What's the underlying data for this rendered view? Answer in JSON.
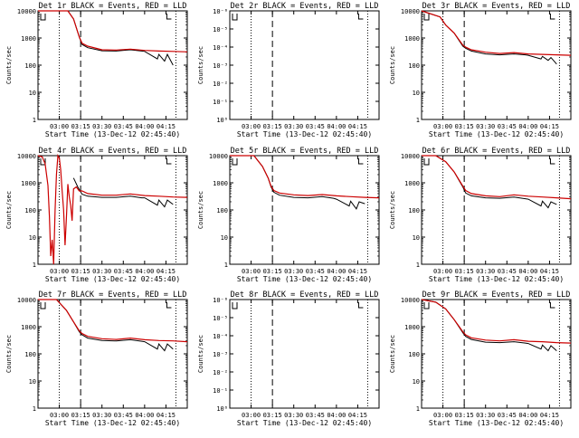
{
  "figure": {
    "xlabel": "Start Time (13-Dec-12 02:45:40)",
    "ylabel": "Counts/sec"
  },
  "chart_data": [
    {
      "type": "line",
      "title": "Det 1r BLACK = Events, RED = LLD",
      "xlabel": "Start Time (13-Dec-12 02:45:40)",
      "ylabel": "Counts/sec",
      "scale": "log",
      "ylim": [
        1,
        10000
      ],
      "yticks": [
        "1",
        "10",
        "100",
        "1000",
        "10000"
      ],
      "xticks": [
        "03:00",
        "03:15",
        "03:30",
        "03:45",
        "04:00",
        "04:15"
      ],
      "dotted_lines": [
        "03:00",
        "04:22"
      ],
      "dashed_lines": [
        "03:15"
      ],
      "series": [
        {
          "color": "#000000",
          "x": [
            "02:45",
            "03:06",
            "03:10",
            "03:14",
            "03:16",
            "03:20",
            "03:30",
            "03:40",
            "03:50",
            "03:58",
            "04:00",
            "04:09",
            "04:10",
            "04:14",
            "04:16",
            "04:20"
          ],
          "values": [
            10000,
            10000,
            5000,
            1100,
            580,
            440,
            340,
            330,
            370,
            330,
            320,
            170,
            250,
            140,
            250,
            100
          ]
        },
        {
          "color": "#cc0000",
          "x": [
            "02:45",
            "03:06",
            "03:10",
            "03:14",
            "03:16",
            "03:20",
            "03:30",
            "03:40",
            "03:50",
            "04:00",
            "04:10",
            "04:20",
            "04:30"
          ],
          "values": [
            10000,
            10000,
            5000,
            1100,
            640,
            500,
            370,
            360,
            390,
            350,
            330,
            320,
            310
          ]
        }
      ]
    },
    {
      "type": "line",
      "title": "Det 2r BLACK = Events, RED = LLD",
      "xlabel": "Start Time (13-Dec-12 02:45:40)",
      "ylabel": "Counts/sec",
      "scale": "log",
      "ylim": [
        1,
        1.000001
      ],
      "yticks": [
        "10⁰",
        "10⁻¹",
        "10⁻²",
        "10⁻³",
        "10⁻⁴",
        "10⁻⁵",
        "10⁻⁶"
      ],
      "xticks": [
        "03:00",
        "03:15",
        "03:30",
        "03:45",
        "04:00",
        "04:15"
      ],
      "dotted_lines": [
        "03:00",
        "04:22"
      ],
      "dashed_lines": [
        "03:15"
      ],
      "series": []
    },
    {
      "type": "line",
      "title": "Det 3r BLACK = Events, RED = LLD",
      "xlabel": "Start Time (13-Dec-12 02:45:40)",
      "ylabel": "Counts/sec",
      "scale": "log",
      "ylim": [
        1,
        10000
      ],
      "yticks": [
        "1",
        "10",
        "100",
        "1000",
        "10000"
      ],
      "xticks": [
        "03:00",
        "03:15",
        "03:30",
        "03:45",
        "04:00",
        "04:15"
      ],
      "dotted_lines": [
        "03:00",
        "04:22"
      ],
      "dashed_lines": [
        "03:15"
      ],
      "series": [
        {
          "color": "#000000",
          "x": [
            "02:45",
            "02:58",
            "03:02",
            "03:08",
            "03:14",
            "03:16",
            "03:20",
            "03:30",
            "03:40",
            "03:50",
            "03:58",
            "04:00",
            "04:09",
            "04:10",
            "04:14",
            "04:16",
            "04:20"
          ],
          "values": [
            10000,
            6000,
            3000,
            1500,
            500,
            420,
            330,
            260,
            240,
            260,
            240,
            230,
            170,
            210,
            150,
            190,
            110
          ]
        },
        {
          "color": "#cc0000",
          "x": [
            "02:45",
            "02:58",
            "03:02",
            "03:08",
            "03:14",
            "03:16",
            "03:20",
            "03:30",
            "03:40",
            "03:50",
            "04:00",
            "04:10",
            "04:20",
            "04:30"
          ],
          "values": [
            10000,
            6000,
            3000,
            1500,
            550,
            460,
            370,
            300,
            270,
            290,
            260,
            250,
            240,
            230
          ]
        }
      ]
    },
    {
      "type": "line",
      "title": "Det 4r BLACK = Events, RED = LLD",
      "xlabel": "Start Time (13-Dec-12 02:45:40)",
      "ylabel": "Counts/sec",
      "scale": "log",
      "ylim": [
        1,
        10000
      ],
      "yticks": [
        "1",
        "10",
        "100",
        "1000",
        "10000"
      ],
      "xticks": [
        "03:00",
        "03:15",
        "03:30",
        "03:45",
        "04:00",
        "04:15"
      ],
      "dotted_lines": [
        "03:00",
        "04:22"
      ],
      "dashed_lines": [
        "03:15"
      ],
      "series": [
        {
          "color": "#000000",
          "x": [
            "03:10",
            "03:13",
            "03:16",
            "03:20",
            "03:30",
            "03:40",
            "03:50",
            "03:58",
            "04:00",
            "04:09",
            "04:10",
            "04:14",
            "04:16",
            "04:20"
          ],
          "values": [
            1500,
            700,
            380,
            320,
            290,
            290,
            320,
            280,
            280,
            150,
            230,
            130,
            230,
            160
          ]
        },
        {
          "color": "#cc0000",
          "x": [
            "02:45",
            "02:48",
            "02:50",
            "02:52",
            "02:53",
            "02:54",
            "02:55",
            "02:56",
            "02:57",
            "02:58",
            "02:59",
            "03:00",
            "03:01",
            "03:02",
            "03:03",
            "03:04",
            "03:05",
            "03:06",
            "03:07",
            "03:08",
            "03:09",
            "03:10",
            "03:12",
            "03:14",
            "03:16",
            "03:20",
            "03:30",
            "03:40",
            "03:50",
            "04:00",
            "04:10",
            "04:20",
            "04:30"
          ],
          "values": [
            10000,
            9000,
            5000,
            800,
            60,
            2,
            8,
            1,
            100,
            2000,
            10000,
            8000,
            3000,
            500,
            100,
            5,
            50,
            900,
            300,
            150,
            40,
            600,
            700,
            500,
            500,
            400,
            350,
            350,
            390,
            340,
            320,
            300,
            290
          ]
        }
      ]
    },
    {
      "type": "line",
      "title": "Det 5r BLACK = Events, RED = LLD",
      "xlabel": "Start Time (13-Dec-12 02:45:40)",
      "ylabel": "Counts/sec",
      "scale": "log",
      "ylim": [
        1,
        10000
      ],
      "yticks": [
        "1",
        "10",
        "100",
        "1000",
        "10000"
      ],
      "xticks": [
        "03:00",
        "03:15",
        "03:30",
        "03:45",
        "04:00",
        "04:15"
      ],
      "dotted_lines": [
        "04:22"
      ],
      "dashed_lines": [
        "03:15"
      ],
      "series": [
        {
          "color": "#000000",
          "x": [
            "02:45",
            "03:02",
            "03:08",
            "03:12",
            "03:14",
            "03:16",
            "03:20",
            "03:30",
            "03:40",
            "03:50",
            "03:58",
            "04:00",
            "04:09",
            "04:10",
            "04:14",
            "04:16",
            "04:20"
          ],
          "values": [
            10000,
            10000,
            4000,
            1500,
            700,
            450,
            350,
            290,
            280,
            310,
            270,
            250,
            140,
            210,
            110,
            200,
            170
          ]
        },
        {
          "color": "#cc0000",
          "x": [
            "02:45",
            "03:02",
            "03:08",
            "03:12",
            "03:14",
            "03:16",
            "03:20",
            "03:30",
            "03:40",
            "03:50",
            "04:00",
            "04:10",
            "04:20",
            "04:30"
          ],
          "values": [
            10000,
            10000,
            4000,
            1500,
            750,
            520,
            420,
            360,
            340,
            370,
            330,
            310,
            290,
            280
          ]
        }
      ]
    },
    {
      "type": "line",
      "title": "Det 6r BLACK = Events, RED = LLD",
      "xlabel": "Start Time (13-Dec-12 02:45:40)",
      "ylabel": "Counts/sec",
      "scale": "log",
      "ylim": [
        1,
        10000
      ],
      "yticks": [
        "1",
        "10",
        "100",
        "1000",
        "10000"
      ],
      "xticks": [
        "03:00",
        "03:15",
        "03:30",
        "03:45",
        "04:00",
        "04:15"
      ],
      "dotted_lines": [
        "03:00",
        "04:22"
      ],
      "dashed_lines": [
        "03:15"
      ],
      "series": [
        {
          "color": "#000000",
          "x": [
            "02:45",
            "02:55",
            "03:02",
            "03:08",
            "03:14",
            "03:16",
            "03:20",
            "03:30",
            "03:40",
            "03:50",
            "03:58",
            "04:00",
            "04:09",
            "04:10",
            "04:14",
            "04:16",
            "04:20"
          ],
          "values": [
            10000,
            10000,
            6000,
            2500,
            700,
            420,
            330,
            280,
            270,
            300,
            260,
            250,
            140,
            210,
            120,
            200,
            160
          ]
        },
        {
          "color": "#cc0000",
          "x": [
            "02:45",
            "02:55",
            "03:02",
            "03:08",
            "03:14",
            "03:16",
            "03:20",
            "03:30",
            "03:40",
            "03:50",
            "04:00",
            "04:10",
            "04:20",
            "04:30"
          ],
          "values": [
            10000,
            10000,
            6000,
            2500,
            750,
            520,
            400,
            330,
            310,
            360,
            320,
            300,
            280,
            260
          ]
        }
      ]
    },
    {
      "type": "line",
      "title": "Det 7r BLACK = Events, RED = LLD",
      "xlabel": "Start Time (13-Dec-12 02:45:40)",
      "ylabel": "Counts/sec",
      "scale": "log",
      "ylim": [
        1,
        10000
      ],
      "yticks": [
        "1",
        "10",
        "100",
        "1000",
        "10000"
      ],
      "xticks": [
        "03:00",
        "03:15",
        "03:30",
        "03:45",
        "04:00",
        "04:15"
      ],
      "dotted_lines": [
        "03:00",
        "04:22"
      ],
      "dashed_lines": [
        "03:15"
      ],
      "series": [
        {
          "color": "#000000",
          "x": [
            "02:45",
            "02:58",
            "03:05",
            "03:10",
            "03:14",
            "03:16",
            "03:20",
            "03:30",
            "03:40",
            "03:50",
            "03:58",
            "04:00",
            "04:09",
            "04:10",
            "04:14",
            "04:16",
            "04:20"
          ],
          "values": [
            10000,
            10000,
            4000,
            1500,
            650,
            500,
            380,
            310,
            300,
            330,
            290,
            280,
            150,
            230,
            130,
            230,
            150
          ]
        },
        {
          "color": "#cc0000",
          "x": [
            "02:45",
            "02:58",
            "03:05",
            "03:10",
            "03:14",
            "03:16",
            "03:20",
            "03:30",
            "03:40",
            "03:50",
            "04:00",
            "04:10",
            "04:20",
            "04:30"
          ],
          "values": [
            10000,
            10000,
            4000,
            1500,
            700,
            560,
            440,
            360,
            340,
            380,
            330,
            310,
            300,
            280
          ]
        }
      ]
    },
    {
      "type": "line",
      "title": "Det 8r BLACK = Events, RED = LLD",
      "xlabel": "Start Time (13-Dec-12 02:45:40)",
      "ylabel": "Counts/sec",
      "scale": "log",
      "ylim": [
        1,
        1.000001
      ],
      "yticks": [
        "10⁰",
        "10⁻¹",
        "10⁻²",
        "10⁻³",
        "10⁻⁴",
        "10⁻⁵",
        "10⁻⁶"
      ],
      "xticks": [
        "03:00",
        "03:15",
        "03:30",
        "03:45",
        "04:00",
        "04:15"
      ],
      "dotted_lines": [
        "03:00",
        "04:22"
      ],
      "dashed_lines": [
        "03:15"
      ],
      "series": []
    },
    {
      "type": "line",
      "title": "Det 9r BLACK = Events, RED = LLD",
      "xlabel": "Start Time (13-Dec-12 02:45:40)",
      "ylabel": "Counts/sec",
      "scale": "log",
      "ylim": [
        1,
        10000
      ],
      "yticks": [
        "1",
        "10",
        "100",
        "1000",
        "10000"
      ],
      "xticks": [
        "03:00",
        "03:15",
        "03:30",
        "03:45",
        "04:00",
        "04:15"
      ],
      "dotted_lines": [
        "03:00",
        "04:22"
      ],
      "dashed_lines": [
        "03:15"
      ],
      "series": [
        {
          "color": "#000000",
          "x": [
            "02:45",
            "02:55",
            "03:02",
            "03:08",
            "03:14",
            "03:16",
            "03:20",
            "03:30",
            "03:40",
            "03:50",
            "03:58",
            "04:00",
            "04:09",
            "04:10",
            "04:14",
            "04:16",
            "04:20"
          ],
          "values": [
            10000,
            8000,
            4500,
            1800,
            600,
            440,
            340,
            270,
            260,
            280,
            250,
            240,
            150,
            210,
            130,
            200,
            130
          ]
        },
        {
          "color": "#cc0000",
          "x": [
            "02:45",
            "02:55",
            "03:02",
            "03:08",
            "03:14",
            "03:16",
            "03:20",
            "03:30",
            "03:40",
            "03:50",
            "04:00",
            "04:10",
            "04:20",
            "04:30"
          ],
          "values": [
            10000,
            8000,
            4500,
            1800,
            650,
            500,
            390,
            320,
            300,
            330,
            290,
            280,
            260,
            250
          ]
        }
      ]
    }
  ]
}
